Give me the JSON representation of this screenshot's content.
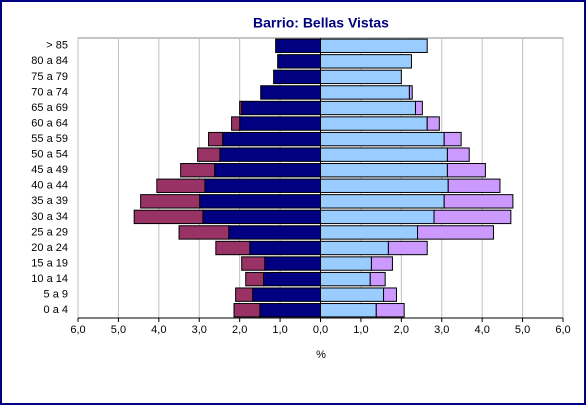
{
  "chart_data": {
    "type": "pyramid",
    "title": "Barrio: Bellas Vistas",
    "x_label": "%",
    "categories": [
      "0 a 4",
      "5 a 9",
      "10 a 14",
      "15 a 19",
      "20 a 24",
      "25 a 29",
      "30 a 34",
      "35 a 39",
      "40 a 44",
      "45 a 49",
      "50 a 54",
      "55 a 59",
      "60 a 64",
      "65 a 69",
      "70 a 74",
      "75 a 79",
      "80 a 84",
      "> 85"
    ],
    "series": [
      {
        "color": "#000080",
        "values": [
          -1.5,
          -1.68,
          -1.41,
          -1.38,
          -1.75,
          -2.27,
          -2.91,
          -2.99,
          -2.86,
          -2.62,
          -2.49,
          -2.42,
          -2.0,
          -1.95,
          -1.48,
          -1.16,
          -1.06,
          -1.11
        ]
      },
      {
        "color": "#993366",
        "values": [
          -0.64,
          -0.42,
          -0.44,
          -0.57,
          -0.84,
          -1.23,
          -1.7,
          -1.46,
          -1.19,
          -0.84,
          -0.55,
          -0.35,
          -0.2,
          -0.05,
          0,
          0,
          0,
          0
        ]
      },
      {
        "color": "#99ccff",
        "values": [
          1.38,
          1.56,
          1.23,
          1.26,
          1.68,
          2.4,
          2.81,
          3.06,
          3.16,
          3.14,
          3.14,
          3.06,
          2.64,
          2.35,
          2.2,
          2.0,
          2.25,
          2.64
        ]
      },
      {
        "color": "#cc99ff",
        "values": [
          0.69,
          0.32,
          0.37,
          0.52,
          0.96,
          1.88,
          1.9,
          1.7,
          1.28,
          0.94,
          0.54,
          0.42,
          0.3,
          0.17,
          0.07,
          0,
          0,
          0
        ]
      }
    ],
    "xlim": [
      -6,
      6
    ],
    "xticks": [
      {
        "value": -6,
        "label": "6,0"
      },
      {
        "value": -5,
        "label": "5,0"
      },
      {
        "value": -4,
        "label": "4,0"
      },
      {
        "value": -3,
        "label": "3,0"
      },
      {
        "value": -2,
        "label": "2,0"
      },
      {
        "value": -1,
        "label": "1,0"
      },
      {
        "value": 0,
        "label": "0,0"
      },
      {
        "value": 1,
        "label": "1,0"
      },
      {
        "value": 2,
        "label": "2,0"
      },
      {
        "value": 3,
        "label": "3,0"
      },
      {
        "value": 4,
        "label": "4,0"
      },
      {
        "value": 5,
        "label": "5,0"
      },
      {
        "value": 6,
        "label": "6,0"
      }
    ],
    "grid": true
  }
}
